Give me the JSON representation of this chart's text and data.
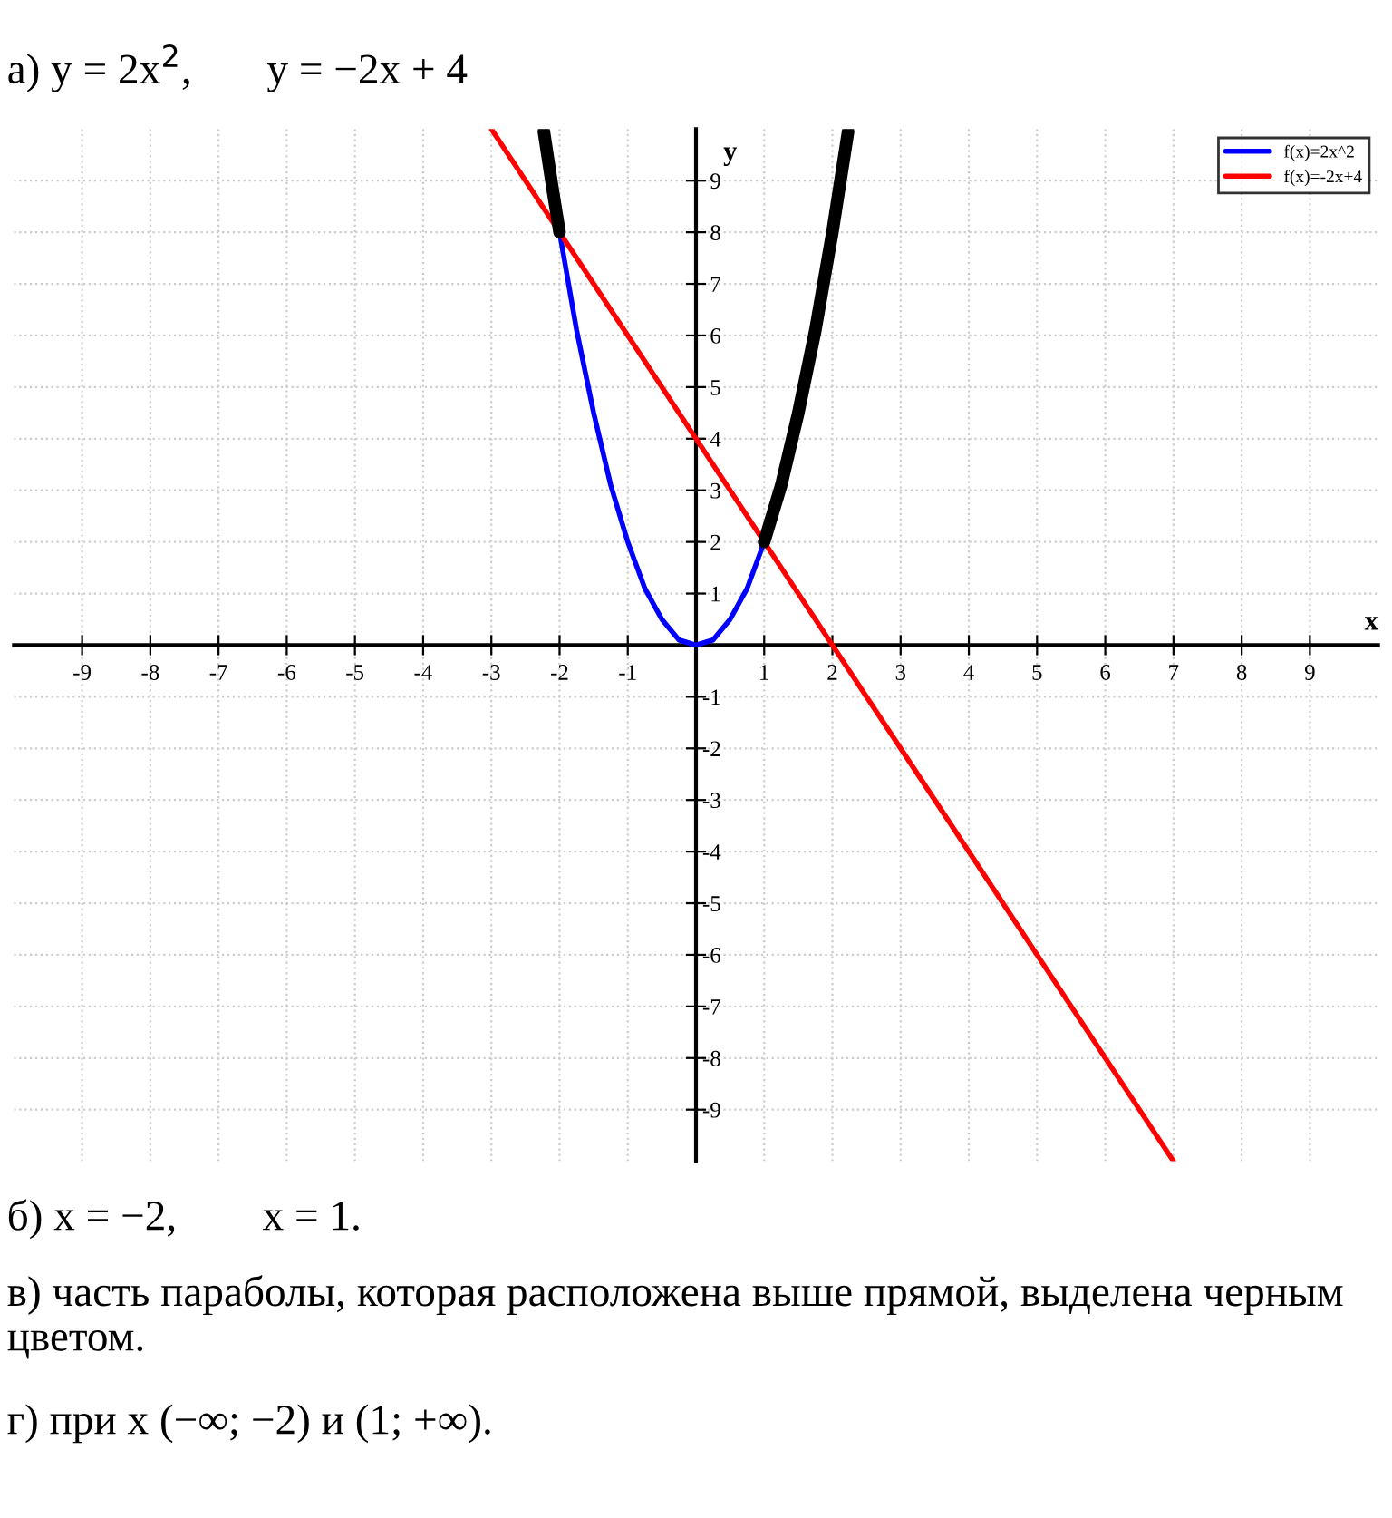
{
  "chart_data": {
    "type": "line",
    "title": "а) y = 2x$^{2}$,       y = −2x + 4",
    "xlabel": "x",
    "ylabel": "y",
    "series": [
      {
        "name": "f(x)=2x^2",
        "color": "#0000ff",
        "x": [
          -2,
          -1.75,
          -1.5,
          -1.25,
          -1,
          -0.75,
          -0.5,
          -0.25,
          0,
          0.25,
          0.5,
          0.75,
          1
        ],
        "values": [
          8,
          6.1,
          4.5,
          3.1,
          2,
          1.1,
          0.5,
          0.1,
          0,
          0.1,
          0.5,
          1.1,
          2
        ]
      },
      {
        "name": "f(x)=-2x+4",
        "color": "#ff0000",
        "x": [
          -3,
          7
        ],
        "values": [
          10,
          -10
        ]
      },
      {
        "color": "#000000",
        "x": [
          -2.23,
          -2.1,
          -2
        ],
        "values": [
          9.95,
          8.82,
          8
        ]
      },
      {
        "color": "#000000",
        "x": [
          1,
          1.25,
          1.5,
          1.75,
          2,
          2.23
        ],
        "values": [
          2,
          3.1,
          4.5,
          6.1,
          8,
          9.95
        ]
      }
    ],
    "xlim": [
      -10,
      10
    ],
    "ylim": [
      -10,
      10
    ],
    "xticks": [
      -9,
      -8,
      -7,
      -6,
      -5,
      -4,
      -3,
      -2,
      -1,
      1,
      2,
      3,
      4,
      5,
      6,
      7,
      8,
      9
    ],
    "yticks": [
      -9,
      -8,
      -7,
      -6,
      -5,
      -4,
      -3,
      -2,
      -1,
      1,
      2,
      3,
      4,
      5,
      6,
      7,
      8,
      9
    ],
    "grid": true,
    "legend": "top right",
    "marker": "none",
    "line_style": "solid",
    "annotations": [
      "б) x = −2,        x = 1.",
      "в) часть параболы, которая расположена выше прямой, выделена черным цветом.",
      "г) при x (−∞; −2) и (1; +∞)."
    ]
  }
}
